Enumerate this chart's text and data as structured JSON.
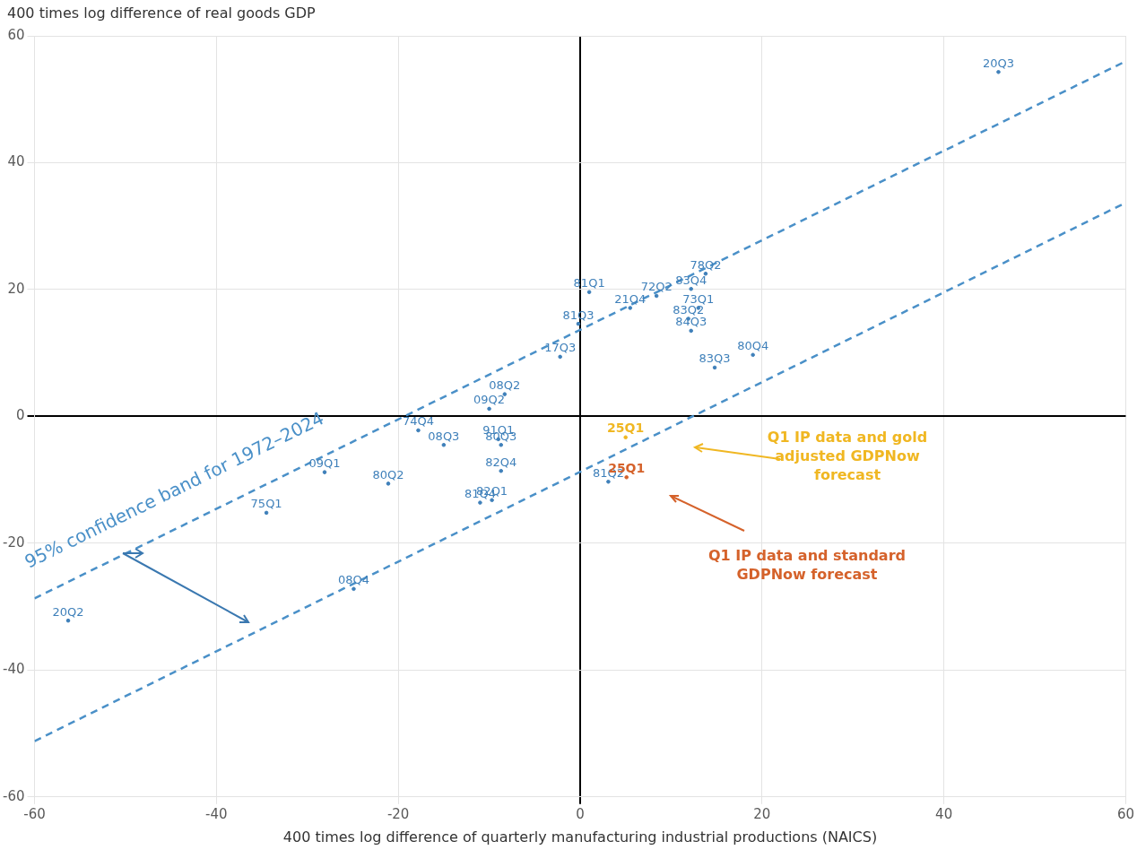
{
  "chart_data": {
    "type": "scatter",
    "xlabel": "400 times log difference of quarterly manufacturing industrial productions (NAICS)",
    "ylabel": "400 times log difference of real goods GDP",
    "xlim": [
      -60,
      60
    ],
    "xticks": [
      -60,
      -40,
      -20,
      0,
      20,
      40,
      60
    ],
    "ylim": [
      -60,
      60
    ],
    "yticks": [
      -60,
      -40,
      -20,
      0,
      20,
      40,
      60
    ],
    "grid": true,
    "legend": false,
    "marker": "circle",
    "line_style": "dashed",
    "series": [
      {
        "color": "#3f80ba",
        "x": [
          46,
          -56.3,
          -24.9,
          -34.5,
          -28.1,
          -21.1,
          -17.8,
          -15,
          -10,
          -8.3,
          -9,
          -8.7,
          -8.7,
          -11,
          -9.7,
          3.1,
          1,
          8.4,
          13.8,
          12.2,
          5.5,
          13,
          11.9,
          12.2,
          -0.2,
          -2.2,
          19,
          14.8
        ],
        "values": [
          54.3,
          -32.2,
          -27.2,
          -15.2,
          -8.8,
          -10.6,
          -2.2,
          -4.5,
          1.2,
          3.5,
          -3.6,
          -4.5,
          -8.6,
          -13.6,
          -13.2,
          -10.3,
          19.6,
          19,
          22.5,
          20.1,
          17.1,
          17.1,
          15.4,
          13.5,
          14.6,
          9.4,
          9.7,
          7.7
        ],
        "value_labels": [
          "20Q3",
          "20Q2",
          "08Q4",
          "75Q1",
          "09Q1",
          "80Q2",
          "74Q4",
          "08Q3",
          "09Q2",
          "08Q2",
          "91Q1",
          "80Q3",
          "82Q4",
          "81Q4",
          "82Q1",
          "81Q2",
          "81Q1",
          "72Q2",
          "78Q2",
          "83Q4",
          "21Q4",
          "73Q1",
          "83Q2",
          "84Q3",
          "81Q3",
          "17Q3",
          "80Q4",
          "83Q3"
        ]
      },
      {
        "color": "#f0b722",
        "x": [
          5
        ],
        "values": [
          -3.3
        ],
        "value_labels": [
          "25Q1"
        ]
      },
      {
        "color": "#d5622b",
        "x": [
          5.1
        ],
        "values": [
          -9.6
        ],
        "value_labels": [
          "25Q1"
        ]
      },
      {
        "type": "line",
        "marker": "none",
        "color": "#4a90c8",
        "x": [
          -60,
          60
        ],
        "values": [
          -28.7,
          56
        ]
      },
      {
        "type": "line",
        "marker": "none",
        "color": "#4a90c8",
        "x": [
          -60,
          60
        ],
        "values": [
          -51.2,
          33.7
        ]
      }
    ],
    "annotations": [
      "95% confidence band for 1972–2024",
      "Q1 IP data and gold adjusted GDPNow forecast",
      "Q1 IP data and standard GDPNow forecast"
    ]
  }
}
